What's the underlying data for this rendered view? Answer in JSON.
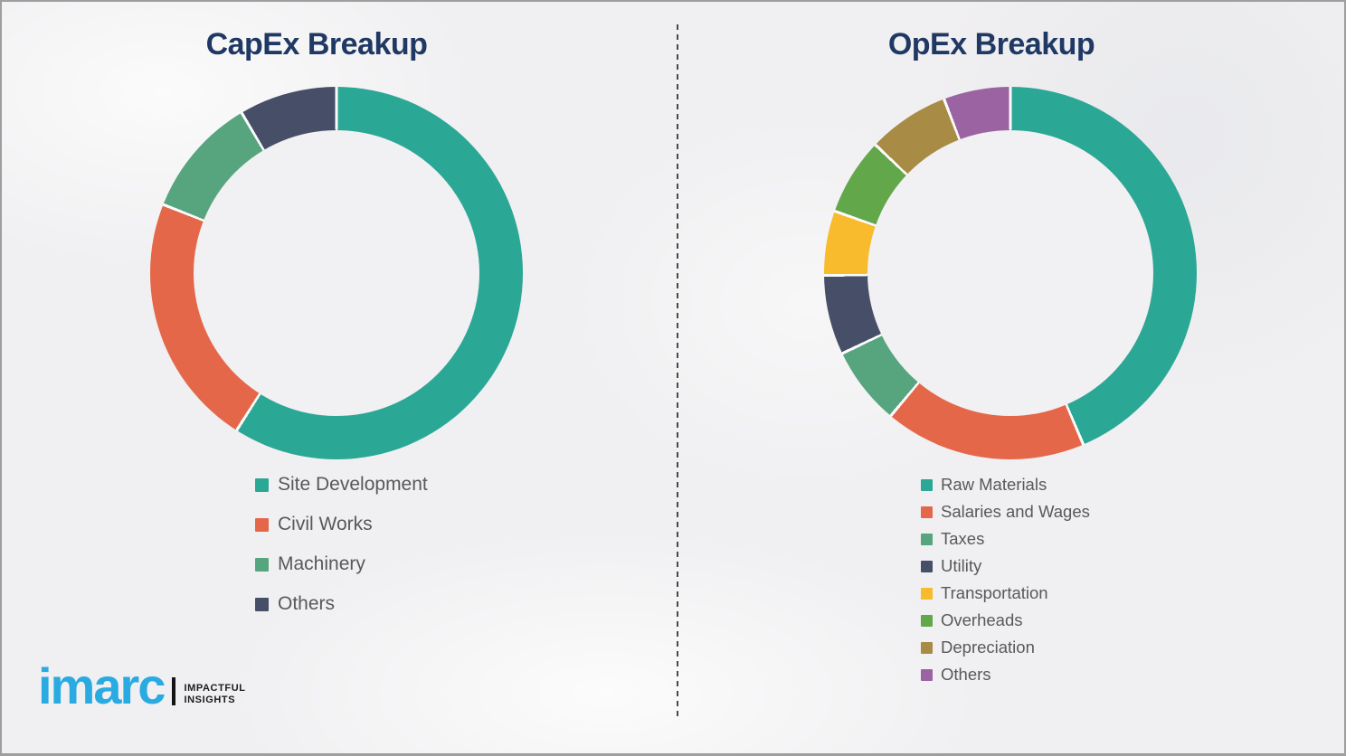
{
  "page": {
    "background": "#f0eff1",
    "border_color": "#9e9e9e",
    "divider_color": "#4a4a4a",
    "title_color": "#1f3864",
    "legend_text_color": "#595959"
  },
  "chart_data": [
    {
      "type": "pie",
      "donut": true,
      "title": "CapEx Breakup",
      "categories": [
        "Site Development",
        "Civil Works",
        "Machinery",
        "Others"
      ],
      "values": [
        59,
        22,
        10.5,
        8.5
      ],
      "colors": [
        "#2BA795",
        "#E5674A",
        "#57A57E",
        "#474E68"
      ],
      "start_angle": "12-oclock-clockwise",
      "legend_position": "below-left",
      "units": "percent-of-ring (estimated from arc angles; no data labels shown)"
    },
    {
      "type": "pie",
      "donut": true,
      "title": "OpEx Breakup",
      "categories": [
        "Raw Materials",
        "Salaries and Wages",
        "Taxes",
        "Utility",
        "Transportation",
        "Overheads",
        "Depreciation",
        "Others"
      ],
      "values": [
        43.6,
        17.5,
        6.8,
        6.9,
        5.6,
        6.7,
        7.1,
        5.8
      ],
      "colors": [
        "#2BA795",
        "#E5674A",
        "#57A57E",
        "#474E68",
        "#F8BB2D",
        "#63A74B",
        "#A88B44",
        "#9C63A2"
      ],
      "start_angle": "12-oclock-clockwise",
      "legend_position": "below-left",
      "units": "percent-of-ring (estimated from arc angles; no data labels shown)"
    }
  ],
  "logo": {
    "brand": "imarc",
    "tagline": [
      "IMPACTFUL",
      "INSIGHTS"
    ],
    "brand_color": "#29abe2"
  }
}
